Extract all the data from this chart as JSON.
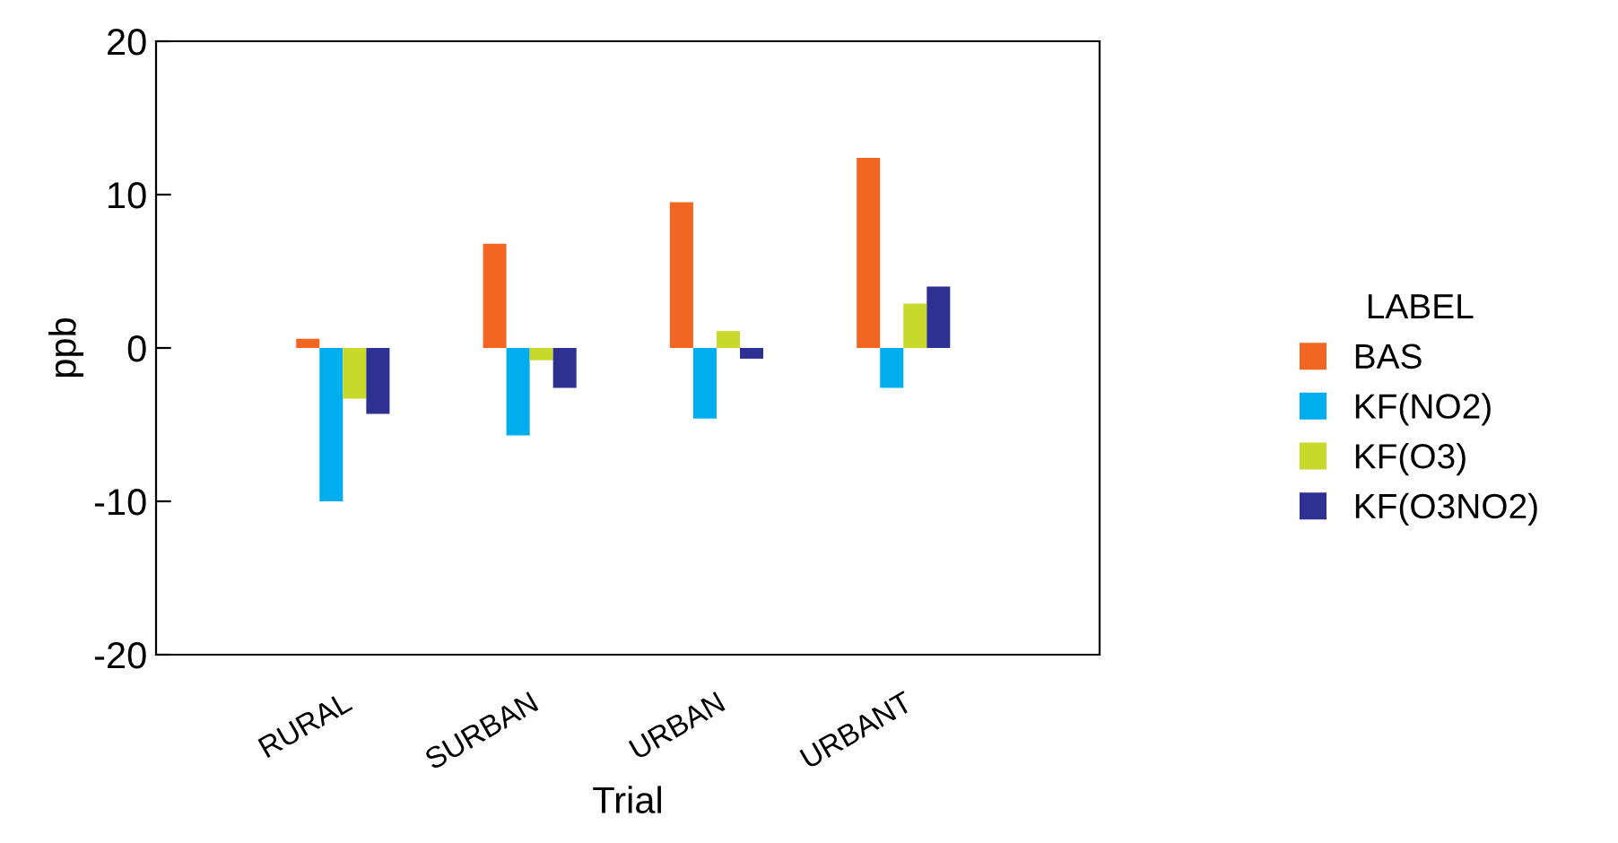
{
  "chart_data": {
    "type": "bar",
    "xlabel": "Trial",
    "ylabel": "ppb",
    "legend_title": "LABEL",
    "legend": "right",
    "categories": [
      "RURAL",
      "SURBAN",
      "URBAN",
      "URBANT"
    ],
    "series": [
      {
        "name": "BAS",
        "color": "#f26522",
        "values": [
          0.6,
          6.8,
          9.5,
          12.4
        ]
      },
      {
        "name": "KF(NO2)",
        "color": "#00aeef",
        "values": [
          -10,
          -5.7,
          -4.6,
          -2.6
        ]
      },
      {
        "name": "KF(O3)",
        "color": "#c8d92b",
        "values": [
          -3.3,
          -0.8,
          1.1,
          2.9
        ]
      },
      {
        "name": "KF(O3NO2)",
        "color": "#2e3192",
        "values": [
          -4.3,
          -2.6,
          -0.7,
          4.0
        ]
      }
    ],
    "ylim": [
      -20,
      20
    ],
    "yticks": [
      -20,
      -10,
      0,
      10,
      20
    ],
    "grid": false
  }
}
